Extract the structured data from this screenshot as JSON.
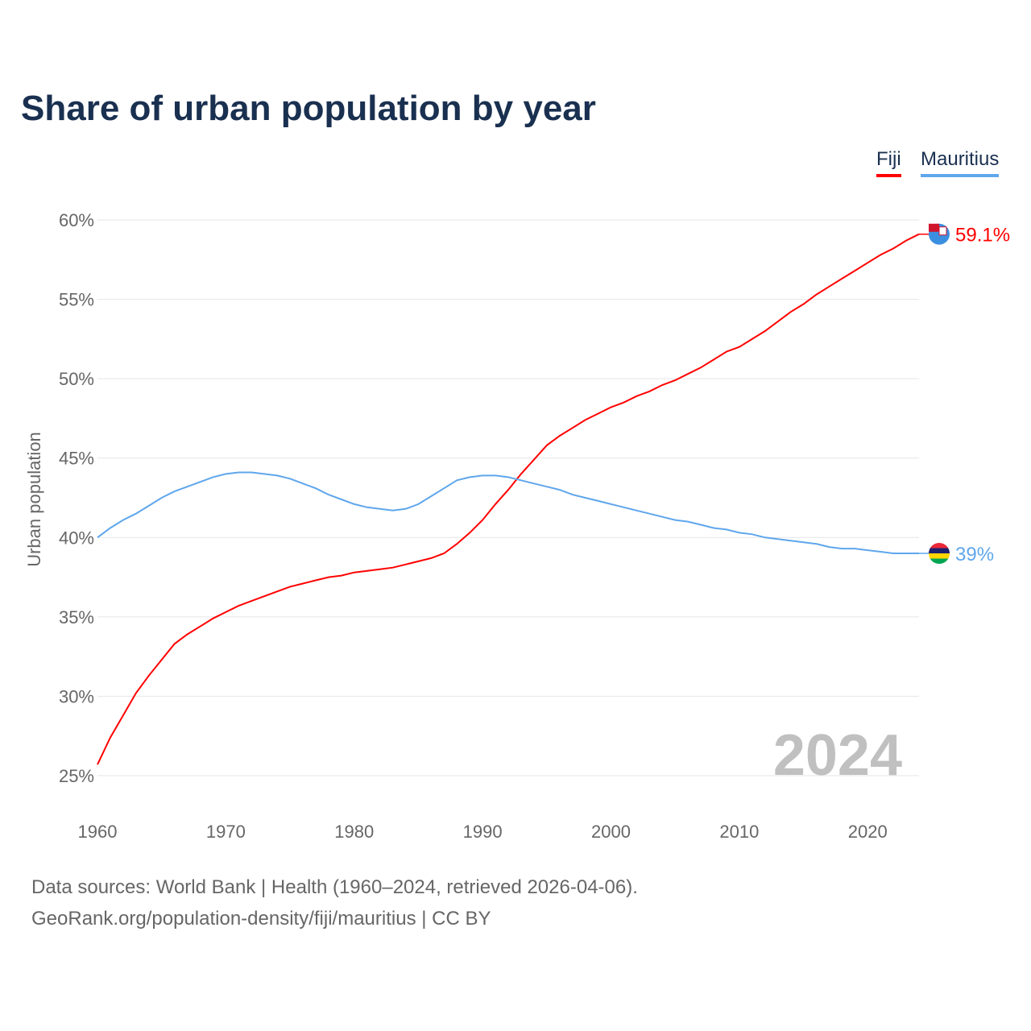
{
  "title": "Share of urban population by year",
  "legend": [
    {
      "label": "Fiji",
      "color": "#ff0000"
    },
    {
      "label": "Mauritius",
      "color": "#5fa6ec"
    }
  ],
  "year_watermark": "2024",
  "footer": {
    "line1": "Data sources: World Bank | Health (1960–2024, retrieved 2026-04-06).",
    "line2": "GeoRank.org/population-density/fiji/mauritius | CC BY"
  },
  "chart_data": {
    "type": "line",
    "title": "Share of urban population by year",
    "xlabel": "",
    "ylabel": "Urban population",
    "xlim": [
      1960,
      2024
    ],
    "ylim": [
      25,
      60
    ],
    "x_ticks": [
      "1960",
      "1970",
      "1980",
      "1990",
      "2000",
      "2010",
      "2020"
    ],
    "y_ticks": [
      "25%",
      "30%",
      "35%",
      "40%",
      "45%",
      "50%",
      "55%",
      "60%"
    ],
    "grid": true,
    "legend_position": "top-right",
    "x": [
      1960,
      1961,
      1962,
      1963,
      1964,
      1965,
      1966,
      1967,
      1968,
      1969,
      1970,
      1971,
      1972,
      1973,
      1974,
      1975,
      1976,
      1977,
      1978,
      1979,
      1980,
      1981,
      1982,
      1983,
      1984,
      1985,
      1986,
      1987,
      1988,
      1989,
      1990,
      1991,
      1992,
      1993,
      1994,
      1995,
      1996,
      1997,
      1998,
      1999,
      2000,
      2001,
      2002,
      2003,
      2004,
      2005,
      2006,
      2007,
      2008,
      2009,
      2010,
      2011,
      2012,
      2013,
      2014,
      2015,
      2016,
      2017,
      2018,
      2019,
      2020,
      2021,
      2022,
      2023,
      2024
    ],
    "series": [
      {
        "name": "Fiji",
        "color": "#ff0000",
        "end_label": "59.1%",
        "values": [
          25.7,
          27.4,
          28.8,
          30.2,
          31.3,
          32.3,
          33.3,
          33.9,
          34.4,
          34.9,
          35.3,
          35.7,
          36.0,
          36.3,
          36.6,
          36.9,
          37.1,
          37.3,
          37.5,
          37.6,
          37.8,
          37.9,
          38.0,
          38.1,
          38.3,
          38.5,
          38.7,
          39.0,
          39.6,
          40.3,
          41.1,
          42.1,
          43.0,
          44.0,
          44.9,
          45.8,
          46.4,
          46.9,
          47.4,
          47.8,
          48.2,
          48.5,
          48.9,
          49.2,
          49.6,
          49.9,
          50.3,
          50.7,
          51.2,
          51.7,
          52.0,
          52.5,
          53.0,
          53.6,
          54.2,
          54.7,
          55.3,
          55.8,
          56.3,
          56.8,
          57.3,
          57.8,
          58.2,
          58.7,
          59.1
        ]
      },
      {
        "name": "Mauritius",
        "color": "#5fa6ec",
        "end_label": "39%",
        "values": [
          40.0,
          40.6,
          41.1,
          41.5,
          42.0,
          42.5,
          42.9,
          43.2,
          43.5,
          43.8,
          44.0,
          44.1,
          44.1,
          44.0,
          43.9,
          43.7,
          43.4,
          43.1,
          42.7,
          42.4,
          42.1,
          41.9,
          41.8,
          41.7,
          41.8,
          42.1,
          42.6,
          43.1,
          43.6,
          43.8,
          43.9,
          43.9,
          43.8,
          43.6,
          43.4,
          43.2,
          43.0,
          42.7,
          42.5,
          42.3,
          42.1,
          41.9,
          41.7,
          41.5,
          41.3,
          41.1,
          41.0,
          40.8,
          40.6,
          40.5,
          40.3,
          40.2,
          40.0,
          39.9,
          39.8,
          39.7,
          39.6,
          39.4,
          39.3,
          39.3,
          39.2,
          39.1,
          39.0,
          39.0,
          39.0
        ]
      }
    ]
  }
}
